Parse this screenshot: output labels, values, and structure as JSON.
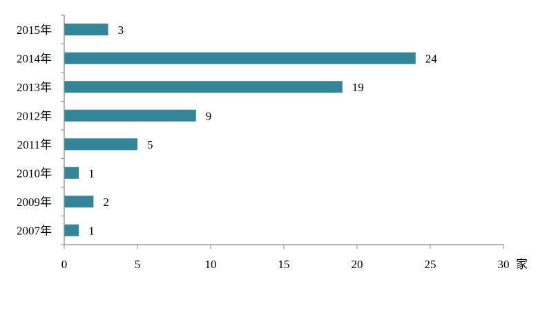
{
  "chart_data": {
    "type": "bar",
    "orientation": "horizontal",
    "categories": [
      "2015年",
      "2014年",
      "2013年",
      "2012年",
      "2011年",
      "2010年",
      "2009年",
      "2007年"
    ],
    "values": [
      3,
      24,
      19,
      9,
      5,
      1,
      2,
      1
    ],
    "data_labels": [
      "3",
      "24",
      "19",
      "9",
      "5",
      "1",
      "2",
      "1"
    ],
    "xlim": [
      0,
      30
    ],
    "xticks": [
      0,
      5,
      10,
      15,
      20,
      25,
      30
    ],
    "x_unit": "家",
    "bar_color": "#33869a",
    "axis_color": "#888888",
    "grid": false,
    "legend": "none"
  }
}
